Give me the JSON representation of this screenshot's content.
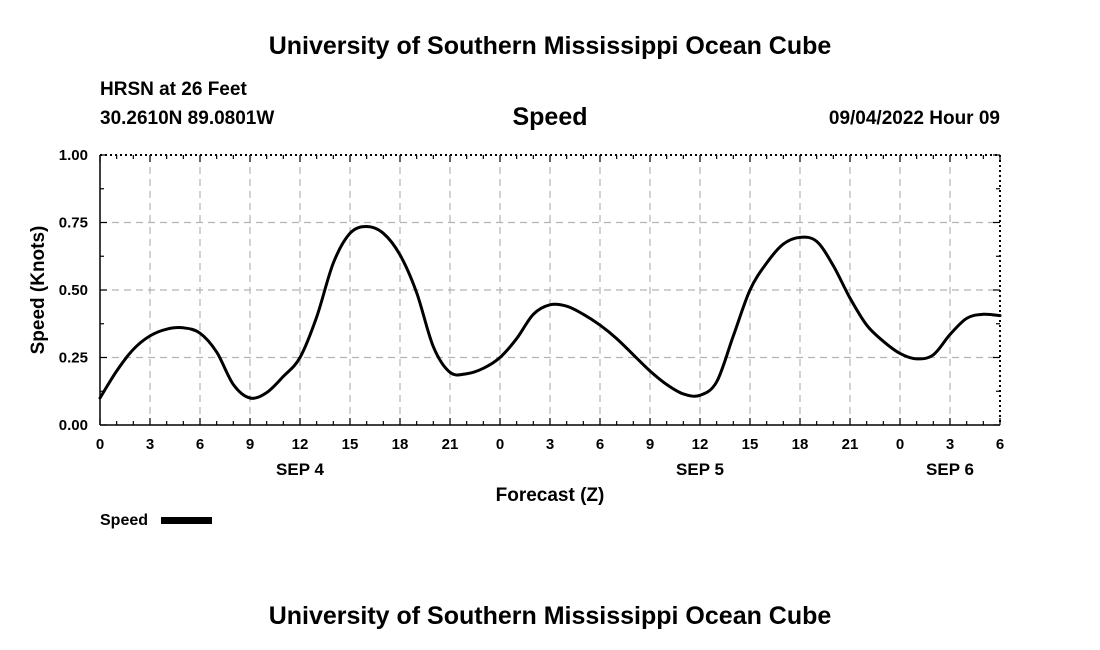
{
  "header": {
    "title": "University of Southern Mississippi Ocean Cube",
    "station": "HRSN at 26 Feet",
    "location": "30.2610N  89.0801W",
    "plot_name": "Speed",
    "datetime": "09/04/2022 Hour 09"
  },
  "footer": {
    "title": "University of Southern Mississippi Ocean Cube"
  },
  "legend": {
    "label": "Speed"
  },
  "colors": {
    "line": "#000000",
    "grid": "#b3b3b3",
    "axis": "#000000"
  },
  "chart_data": {
    "type": "line",
    "title": "Speed",
    "xlabel": "Forecast (Z)",
    "ylabel": "Speed (Knots)",
    "xlim": [
      0,
      54
    ],
    "ylim": [
      0,
      1
    ],
    "grid": true,
    "legend_position": "bottom-left",
    "x_ticks": [
      0,
      3,
      6,
      9,
      12,
      15,
      18,
      21,
      24,
      27,
      30,
      33,
      36,
      39,
      42,
      45,
      48,
      51,
      54
    ],
    "x_tick_labels": [
      "0",
      "3",
      "6",
      "9",
      "12",
      "15",
      "18",
      "21",
      "0",
      "3",
      "6",
      "9",
      "12",
      "15",
      "18",
      "21",
      "0",
      "3",
      "6"
    ],
    "y_ticks": [
      0,
      0.25,
      0.5,
      0.75,
      1
    ],
    "y_tick_labels": [
      "0.00",
      "0.25",
      "0.50",
      "0.75",
      "1.00"
    ],
    "date_labels": [
      {
        "x": 12,
        "label": "SEP 4"
      },
      {
        "x": 36,
        "label": "SEP 5"
      },
      {
        "x": 51,
        "label": "SEP 6"
      }
    ],
    "series": [
      {
        "name": "Speed",
        "x": [
          0,
          1,
          2,
          3,
          4,
          5,
          6,
          7,
          8,
          9,
          10,
          11,
          12,
          13,
          14,
          15,
          16,
          17,
          18,
          19,
          20,
          21,
          22,
          23,
          24,
          25,
          26,
          27,
          28,
          29,
          30,
          31,
          32,
          33,
          34,
          35,
          36,
          37,
          38,
          39,
          40,
          41,
          42,
          43,
          44,
          45,
          46,
          47,
          48,
          49,
          50,
          51,
          52,
          53,
          54
        ],
        "values": [
          0.1,
          0.2,
          0.28,
          0.33,
          0.355,
          0.36,
          0.34,
          0.27,
          0.15,
          0.1,
          0.12,
          0.18,
          0.25,
          0.4,
          0.6,
          0.71,
          0.735,
          0.71,
          0.63,
          0.49,
          0.29,
          0.195,
          0.19,
          0.21,
          0.25,
          0.32,
          0.41,
          0.445,
          0.44,
          0.41,
          0.37,
          0.32,
          0.26,
          0.2,
          0.15,
          0.115,
          0.11,
          0.16,
          0.33,
          0.5,
          0.6,
          0.67,
          0.695,
          0.68,
          0.59,
          0.47,
          0.37,
          0.31,
          0.265,
          0.245,
          0.26,
          0.335,
          0.395,
          0.41,
          0.405
        ]
      }
    ]
  }
}
